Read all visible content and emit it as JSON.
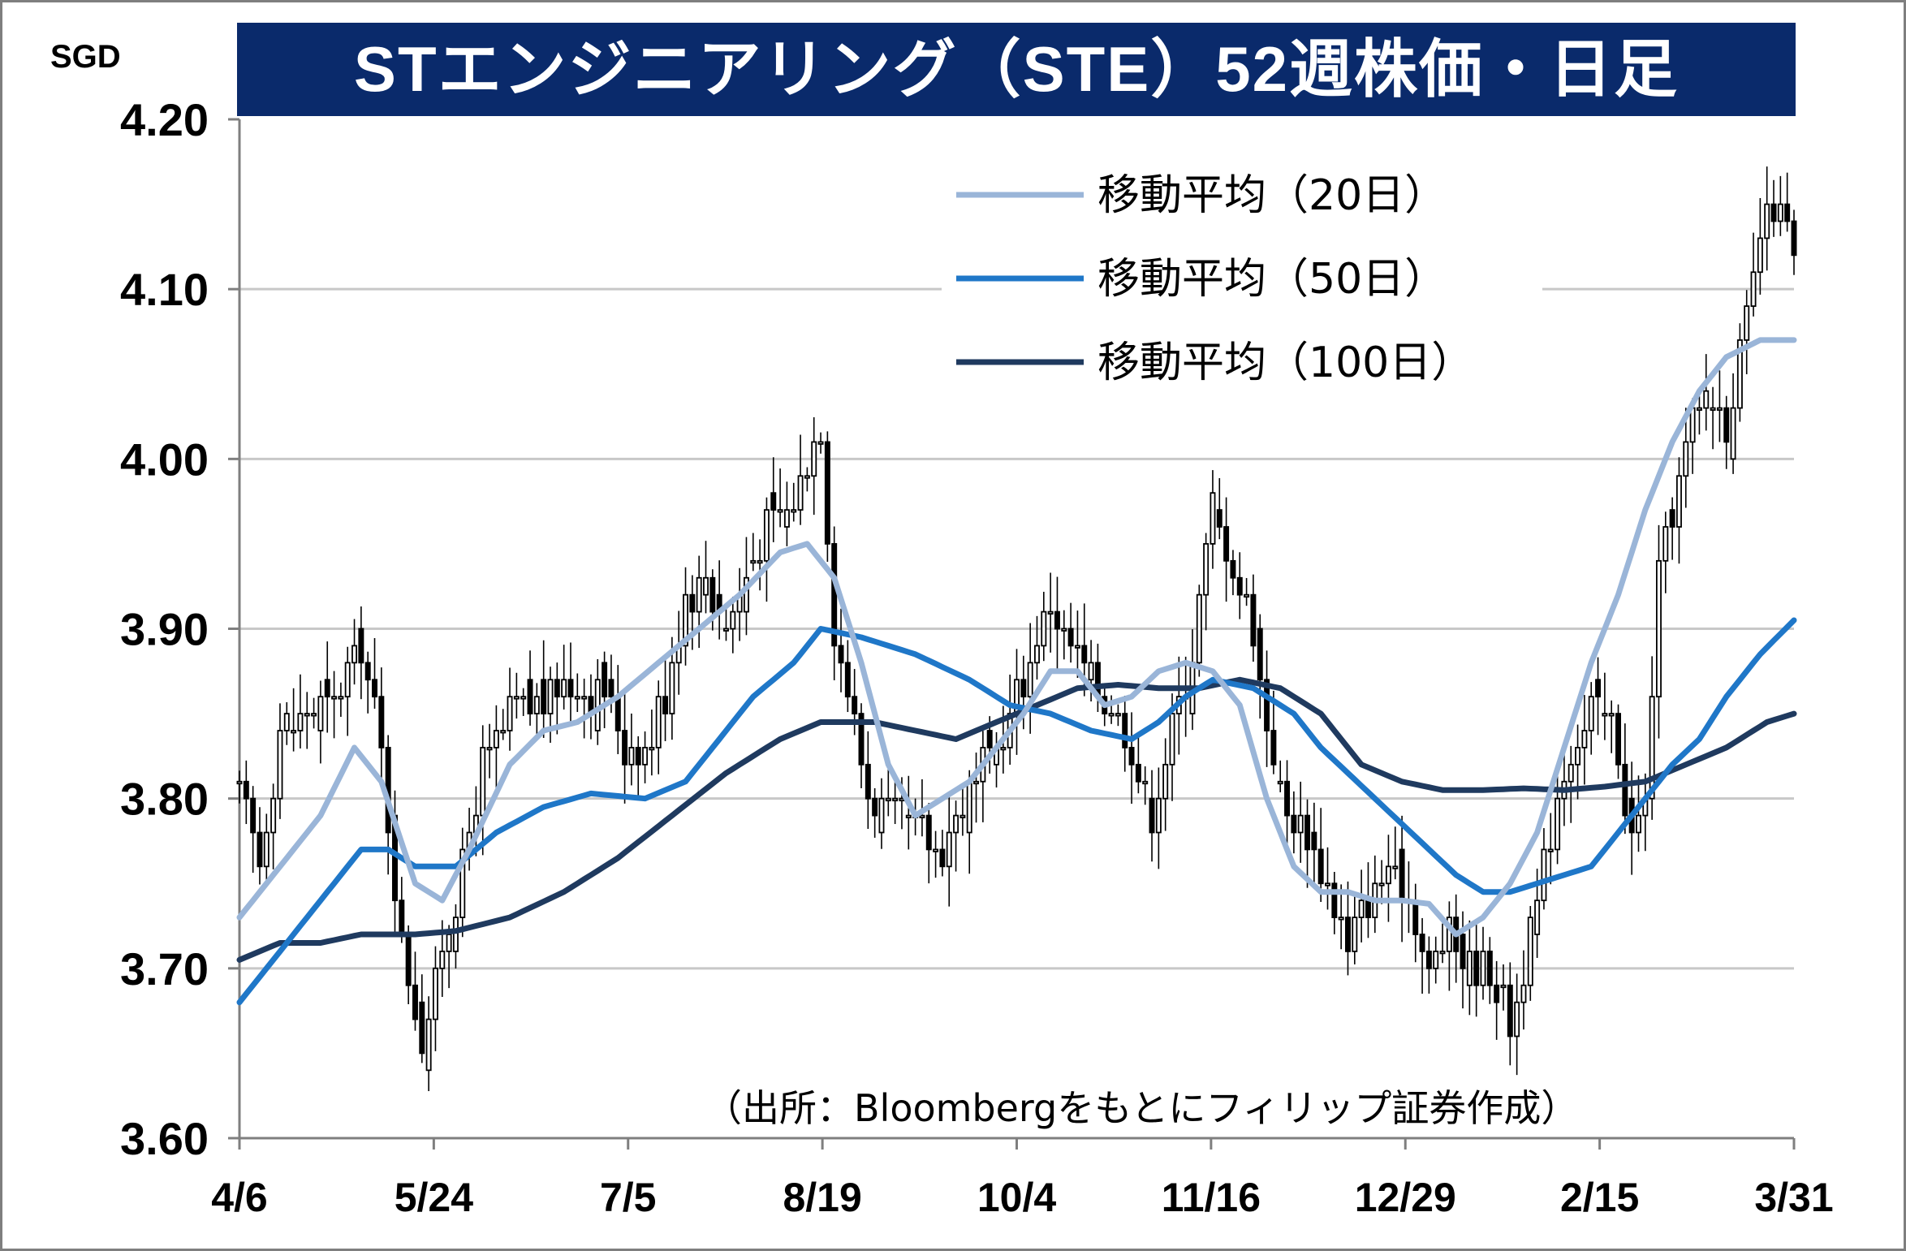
{
  "title": "STエンジニアリング（STE）52週株価・日足",
  "unit": "SGD",
  "source_note": "（出所：Bloombergをもとにフィリップ証券作成）",
  "colors": {
    "title_bg": "#0a2a6b",
    "ma20": "#9ab5d8",
    "ma50": "#1f77c8",
    "ma100": "#1f3a5f",
    "candle": "#000000",
    "grid": "#c8c8c8"
  },
  "chart_data": {
    "type": "candlestick",
    "title": "STエンジニアリング（STE）52週株価・日足",
    "ylabel": "SGD",
    "ylim": [
      3.6,
      4.2
    ],
    "yticks": [
      "4.20",
      "4.10",
      "4.00",
      "3.90",
      "3.80",
      "3.70",
      "3.60"
    ],
    "xticks": [
      "4/6",
      "5/24",
      "7/5",
      "8/19",
      "10/4",
      "11/16",
      "12/29",
      "2/15",
      "3/31"
    ],
    "grid": true,
    "legend_position": "top-right",
    "legend": [
      "移動平均（20日）",
      "移動平均（50日）",
      "移動平均（100日）"
    ],
    "close_anchors": [
      [
        0,
        3.8
      ],
      [
        3,
        3.76
      ],
      [
        6,
        3.84
      ],
      [
        10,
        3.85
      ],
      [
        14,
        3.86
      ],
      [
        18,
        3.89
      ],
      [
        21,
        3.83
      ],
      [
        24,
        3.71
      ],
      [
        27,
        3.66
      ],
      [
        30,
        3.71
      ],
      [
        33,
        3.76
      ],
      [
        36,
        3.82
      ],
      [
        40,
        3.85
      ],
      [
        45,
        3.86
      ],
      [
        50,
        3.87
      ],
      [
        54,
        3.86
      ],
      [
        57,
        3.83
      ],
      [
        60,
        3.83
      ],
      [
        63,
        3.86
      ],
      [
        66,
        3.92
      ],
      [
        69,
        3.93
      ],
      [
        72,
        3.9
      ],
      [
        75,
        3.93
      ],
      [
        78,
        3.96
      ],
      [
        81,
        3.97
      ],
      [
        84,
        4.0
      ],
      [
        86,
        4.02
      ],
      [
        88,
        3.9
      ],
      [
        90,
        3.86
      ],
      [
        93,
        3.8
      ],
      [
        96,
        3.79
      ],
      [
        100,
        3.78
      ],
      [
        104,
        3.77
      ],
      [
        108,
        3.8
      ],
      [
        112,
        3.83
      ],
      [
        116,
        3.87
      ],
      [
        120,
        3.92
      ],
      [
        124,
        3.88
      ],
      [
        128,
        3.86
      ],
      [
        132,
        3.83
      ],
      [
        135,
        3.79
      ],
      [
        138,
        3.84
      ],
      [
        141,
        3.89
      ],
      [
        144,
        3.97
      ],
      [
        147,
        3.94
      ],
      [
        150,
        3.9
      ],
      [
        152,
        3.84
      ],
      [
        155,
        3.79
      ],
      [
        158,
        3.78
      ],
      [
        161,
        3.75
      ],
      [
        164,
        3.71
      ],
      [
        167,
        3.74
      ],
      [
        170,
        3.76
      ],
      [
        173,
        3.74
      ],
      [
        176,
        3.7
      ],
      [
        179,
        3.72
      ],
      [
        182,
        3.7
      ],
      [
        185,
        3.7
      ],
      [
        188,
        3.67
      ],
      [
        190,
        3.7
      ],
      [
        193,
        3.76
      ],
      [
        195,
        3.8
      ],
      [
        197,
        3.83
      ],
      [
        200,
        3.85
      ],
      [
        203,
        3.85
      ],
      [
        206,
        3.78
      ],
      [
        208,
        3.8
      ],
      [
        210,
        3.93
      ],
      [
        212,
        3.97
      ],
      [
        214,
        4.01
      ],
      [
        217,
        4.04
      ],
      [
        220,
        4.02
      ],
      [
        223,
        4.08
      ],
      [
        225,
        4.13
      ],
      [
        227,
        4.15
      ],
      [
        229,
        4.14
      ],
      [
        230,
        4.12
      ]
    ],
    "ma20": [
      [
        0,
        3.73
      ],
      [
        12,
        3.79
      ],
      [
        17,
        3.83
      ],
      [
        21,
        3.81
      ],
      [
        26,
        3.75
      ],
      [
        30,
        3.74
      ],
      [
        34,
        3.77
      ],
      [
        40,
        3.82
      ],
      [
        45,
        3.84
      ],
      [
        50,
        3.845
      ],
      [
        56,
        3.86
      ],
      [
        62,
        3.88
      ],
      [
        68,
        3.9
      ],
      [
        74,
        3.92
      ],
      [
        80,
        3.945
      ],
      [
        84,
        3.95
      ],
      [
        88,
        3.93
      ],
      [
        92,
        3.88
      ],
      [
        96,
        3.82
      ],
      [
        100,
        3.79
      ],
      [
        104,
        3.8
      ],
      [
        108,
        3.81
      ],
      [
        112,
        3.83
      ],
      [
        116,
        3.85
      ],
      [
        120,
        3.875
      ],
      [
        124,
        3.875
      ],
      [
        128,
        3.855
      ],
      [
        132,
        3.86
      ],
      [
        136,
        3.875
      ],
      [
        140,
        3.88
      ],
      [
        144,
        3.875
      ],
      [
        148,
        3.855
      ],
      [
        152,
        3.8
      ],
      [
        156,
        3.76
      ],
      [
        160,
        3.745
      ],
      [
        164,
        3.745
      ],
      [
        168,
        3.74
      ],
      [
        172,
        3.74
      ],
      [
        176,
        3.738
      ],
      [
        180,
        3.72
      ],
      [
        184,
        3.73
      ],
      [
        188,
        3.75
      ],
      [
        192,
        3.78
      ],
      [
        196,
        3.83
      ],
      [
        200,
        3.88
      ],
      [
        204,
        3.92
      ],
      [
        208,
        3.97
      ],
      [
        212,
        4.01
      ],
      [
        216,
        4.04
      ],
      [
        220,
        4.06
      ],
      [
        225,
        4.07
      ],
      [
        230,
        4.07
      ]
    ],
    "ma50": [
      [
        0,
        3.68
      ],
      [
        8,
        3.72
      ],
      [
        12,
        3.74
      ],
      [
        18,
        3.77
      ],
      [
        22,
        3.77
      ],
      [
        26,
        3.76
      ],
      [
        32,
        3.76
      ],
      [
        38,
        3.78
      ],
      [
        45,
        3.795
      ],
      [
        52,
        3.803
      ],
      [
        60,
        3.8
      ],
      [
        66,
        3.81
      ],
      [
        70,
        3.83
      ],
      [
        76,
        3.86
      ],
      [
        82,
        3.88
      ],
      [
        86,
        3.9
      ],
      [
        92,
        3.895
      ],
      [
        100,
        3.885
      ],
      [
        108,
        3.87
      ],
      [
        114,
        3.855
      ],
      [
        120,
        3.85
      ],
      [
        126,
        3.84
      ],
      [
        132,
        3.835
      ],
      [
        136,
        3.845
      ],
      [
        140,
        3.86
      ],
      [
        144,
        3.87
      ],
      [
        150,
        3.865
      ],
      [
        156,
        3.85
      ],
      [
        160,
        3.83
      ],
      [
        164,
        3.815
      ],
      [
        168,
        3.8
      ],
      [
        172,
        3.785
      ],
      [
        176,
        3.77
      ],
      [
        180,
        3.755
      ],
      [
        184,
        3.745
      ],
      [
        188,
        3.745
      ],
      [
        192,
        3.75
      ],
      [
        196,
        3.755
      ],
      [
        200,
        3.76
      ],
      [
        204,
        3.78
      ],
      [
        208,
        3.8
      ],
      [
        212,
        3.82
      ],
      [
        216,
        3.835
      ],
      [
        220,
        3.86
      ],
      [
        225,
        3.885
      ],
      [
        230,
        3.905
      ]
    ],
    "ma100": [
      [
        0,
        3.705
      ],
      [
        6,
        3.715
      ],
      [
        12,
        3.715
      ],
      [
        18,
        3.72
      ],
      [
        26,
        3.72
      ],
      [
        32,
        3.722
      ],
      [
        40,
        3.73
      ],
      [
        48,
        3.745
      ],
      [
        56,
        3.765
      ],
      [
        64,
        3.79
      ],
      [
        72,
        3.815
      ],
      [
        80,
        3.835
      ],
      [
        86,
        3.845
      ],
      [
        94,
        3.845
      ],
      [
        100,
        3.84
      ],
      [
        106,
        3.835
      ],
      [
        112,
        3.845
      ],
      [
        118,
        3.855
      ],
      [
        124,
        3.865
      ],
      [
        130,
        3.867
      ],
      [
        136,
        3.865
      ],
      [
        142,
        3.865
      ],
      [
        148,
        3.87
      ],
      [
        154,
        3.865
      ],
      [
        160,
        3.85
      ],
      [
        166,
        3.82
      ],
      [
        172,
        3.81
      ],
      [
        178,
        3.805
      ],
      [
        184,
        3.805
      ],
      [
        190,
        3.806
      ],
      [
        196,
        3.805
      ],
      [
        202,
        3.807
      ],
      [
        208,
        3.81
      ],
      [
        214,
        3.82
      ],
      [
        220,
        3.83
      ],
      [
        226,
        3.845
      ],
      [
        230,
        3.85
      ]
    ],
    "total_days": 230,
    "seed": 17
  }
}
